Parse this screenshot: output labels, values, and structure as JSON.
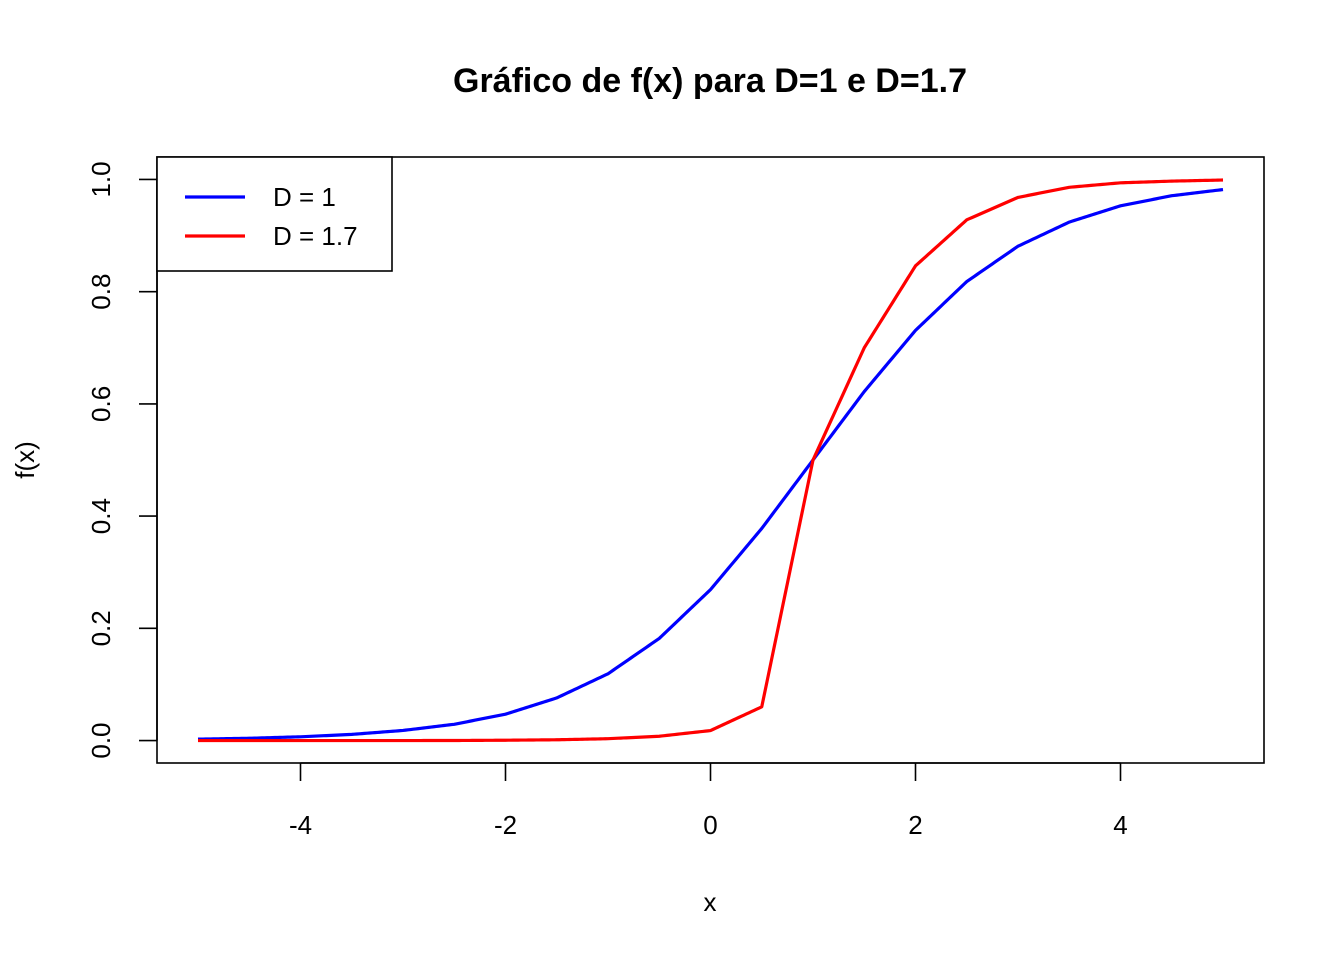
{
  "chart_data": {
    "type": "line",
    "title": "Gráfico de f(x) para D=1 e D=1.7",
    "xlabel": "x",
    "ylabel": "f(x)",
    "xlim": [
      -5.4,
      5.4
    ],
    "ylim": [
      -0.04,
      1.04
    ],
    "xticks": [
      -4,
      -2,
      0,
      2,
      4
    ],
    "xtick_labels": [
      "-4",
      "-2",
      "0",
      "2",
      "4"
    ],
    "yticks": [
      0.0,
      0.2,
      0.4,
      0.6,
      0.8,
      1.0
    ],
    "ytick_labels": [
      "0.0",
      "0.2",
      "0.4",
      "0.6",
      "0.8",
      "1.0"
    ],
    "legend_position": "top-left",
    "grid": false,
    "series": [
      {
        "name": "D = 1",
        "color": "#0000ff",
        "x": [
          -5,
          -4.5,
          -4,
          -3.5,
          -3,
          -2.5,
          -2,
          -1.5,
          -1,
          -0.5,
          0,
          0.5,
          1,
          1.5,
          2,
          2.5,
          3,
          3.5,
          4,
          4.5,
          5
        ],
        "y": [
          0.0025,
          0.0041,
          0.0067,
          0.011,
          0.018,
          0.029,
          0.047,
          0.076,
          0.119,
          0.182,
          0.269,
          0.378,
          0.5,
          0.622,
          0.731,
          0.818,
          0.881,
          0.924,
          0.953,
          0.971,
          0.982
        ]
      },
      {
        "name": "D = 1.7",
        "color": "#ff0000",
        "x": [
          -5,
          -4.5,
          -4,
          -3.5,
          -3,
          -2.5,
          -2,
          -1.5,
          -1,
          -0.5,
          0,
          0.5,
          1,
          1.5,
          2,
          2.5,
          3,
          3.5,
          4,
          4.5,
          5
        ],
        "y": [
          0.0,
          0.0,
          0.0,
          0.0,
          0.0,
          0.0001,
          0.0006,
          0.0014,
          0.0033,
          0.0077,
          0.0178,
          0.0601,
          0.5,
          0.7,
          0.846,
          0.928,
          0.968,
          0.986,
          0.994,
          0.997,
          0.999
        ]
      }
    ]
  }
}
